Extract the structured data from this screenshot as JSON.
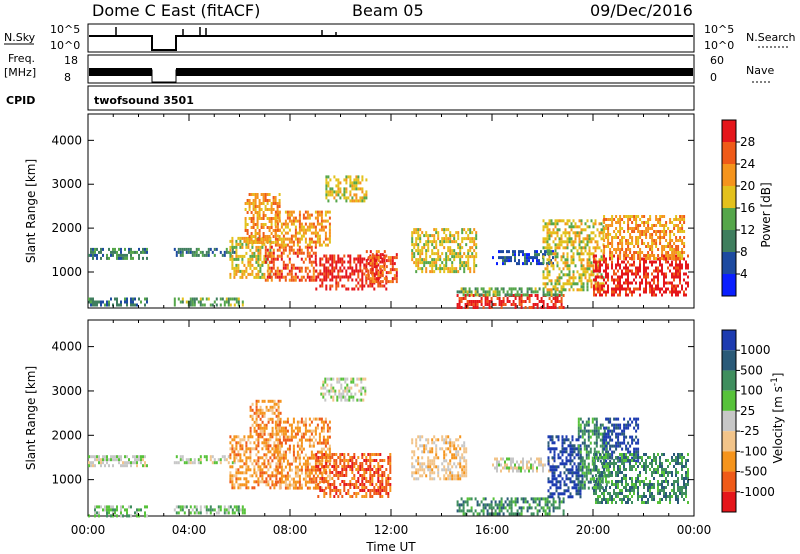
{
  "header": {
    "station": "Dome C East (fitACF)",
    "beam": "Beam 05",
    "date": "09/Dec/2016"
  },
  "status_panels": {
    "nsky_label": "N.Sky",
    "nsky_ticks": [
      "10^5",
      "10^0"
    ],
    "nsearch_label": "N.Search",
    "nsearch_ticks": [
      "10^5",
      "10^0"
    ],
    "freq_label": "Freq.",
    "freq_unit": "[MHz]",
    "freq_ticks": [
      "18",
      "8"
    ],
    "nave_label": "Nave",
    "nave_ticks": [
      "60",
      "0"
    ],
    "cpid_label": "CPID",
    "cpid_value": "twofsound 3501"
  },
  "x_axis": {
    "label": "Time UT",
    "ticks": [
      "00:00",
      "04:00",
      "08:00",
      "12:00",
      "16:00",
      "20:00",
      "00:00"
    ]
  },
  "colors": {
    "power": [
      "#0a1fff",
      "#1d4aa0",
      "#3f7e5e",
      "#55a64a",
      "#e3c11c",
      "#f5941c",
      "#ef5a18",
      "#e5161b"
    ],
    "velocity": [
      "#e5161b",
      "#ef5a18",
      "#f5941c",
      "#f2c48a",
      "#c7c7c7",
      "#57c23a",
      "#3f8e5e",
      "#2a5a78",
      "#1d3bb0"
    ],
    "axis": "#000000"
  },
  "chart_data": [
    {
      "type": "heatmap",
      "name": "power-panel",
      "xlabel": "",
      "ylabel": "Slant Range [km]",
      "xlim": [
        0,
        24
      ],
      "ylim": [
        180,
        4600
      ],
      "yticks": [
        1000,
        2000,
        3000,
        4000
      ],
      "colorbar": {
        "label": "Power [dB]",
        "ticks": [
          "28",
          "24",
          "20",
          "16",
          "12",
          "8",
          "4"
        ],
        "range": [
          0,
          32
        ]
      },
      "regions": [
        {
          "t": [
            0.0,
            2.3
          ],
          "r": [
            1300,
            1550
          ],
          "level": 2
        },
        {
          "t": [
            0.0,
            2.3
          ],
          "r": [
            220,
            420
          ],
          "level": 2
        },
        {
          "t": [
            3.4,
            5.8
          ],
          "r": [
            1350,
            1550
          ],
          "level": 2
        },
        {
          "t": [
            3.4,
            6.2
          ],
          "r": [
            220,
            420
          ],
          "level": 3
        },
        {
          "t": [
            5.6,
            7.2
          ],
          "r": [
            900,
            1800
          ],
          "level": 4
        },
        {
          "t": [
            6.2,
            7.6
          ],
          "r": [
            1700,
            2800
          ],
          "level": 5
        },
        {
          "t": [
            7.0,
            9.0
          ],
          "r": [
            800,
            1600
          ],
          "level": 6
        },
        {
          "t": [
            7.4,
            9.6
          ],
          "r": [
            1600,
            2400
          ],
          "level": 5
        },
        {
          "t": [
            9.0,
            11.8
          ],
          "r": [
            600,
            1400
          ],
          "level": 7
        },
        {
          "t": [
            9.4,
            11.0
          ],
          "r": [
            2600,
            3200
          ],
          "level": 4
        },
        {
          "t": [
            11.0,
            12.2
          ],
          "r": [
            800,
            1500
          ],
          "level": 6
        },
        {
          "t": [
            12.8,
            15.4
          ],
          "r": [
            1000,
            2000
          ],
          "level": 4
        },
        {
          "t": [
            14.6,
            18.8
          ],
          "r": [
            200,
            500
          ],
          "level": 7
        },
        {
          "t": [
            14.6,
            18.8
          ],
          "r": [
            450,
            650
          ],
          "level": 3
        },
        {
          "t": [
            16.0,
            18.4
          ],
          "r": [
            1200,
            1500
          ],
          "level": 1
        },
        {
          "t": [
            18.0,
            20.4
          ],
          "r": [
            600,
            2200
          ],
          "level": 4
        },
        {
          "t": [
            20.0,
            23.8
          ],
          "r": [
            500,
            1400
          ],
          "level": 7
        },
        {
          "t": [
            20.4,
            23.6
          ],
          "r": [
            1300,
            2300
          ],
          "level": 5
        }
      ]
    },
    {
      "type": "heatmap",
      "name": "velocity-panel",
      "xlabel": "Time UT",
      "ylabel": "Slant Range [km]",
      "xlim": [
        0,
        24
      ],
      "ylim": [
        180,
        4600
      ],
      "yticks": [
        1000,
        2000,
        3000,
        4000
      ],
      "colorbar": {
        "label": "Velocity [m s^-1]",
        "ticks": [
          "1000",
          "500",
          "100",
          "25",
          "-25",
          "-100",
          "-500",
          "-1000"
        ],
        "range": [
          -1000,
          1000
        ]
      },
      "regions": [
        {
          "t": [
            0.0,
            2.3
          ],
          "r": [
            1300,
            1550
          ],
          "level": 4
        },
        {
          "t": [
            0.0,
            2.3
          ],
          "r": [
            200,
            420
          ],
          "level": 5
        },
        {
          "t": [
            3.4,
            5.8
          ],
          "r": [
            1350,
            1550
          ],
          "level": 4
        },
        {
          "t": [
            3.4,
            6.2
          ],
          "r": [
            220,
            420
          ],
          "level": 5
        },
        {
          "t": [
            5.6,
            7.6
          ],
          "r": [
            800,
            2000
          ],
          "level": 2
        },
        {
          "t": [
            6.4,
            7.6
          ],
          "r": [
            2000,
            2800
          ],
          "level": 2
        },
        {
          "t": [
            7.4,
            9.6
          ],
          "r": [
            800,
            2400
          ],
          "level": 2
        },
        {
          "t": [
            9.0,
            12.0
          ],
          "r": [
            600,
            1600
          ],
          "level": 1
        },
        {
          "t": [
            9.2,
            11.0
          ],
          "r": [
            2800,
            3300
          ],
          "level": 4
        },
        {
          "t": [
            12.8,
            15.0
          ],
          "r": [
            1000,
            2000
          ],
          "level": 3
        },
        {
          "t": [
            14.6,
            18.8
          ],
          "r": [
            200,
            600
          ],
          "level": 6
        },
        {
          "t": [
            16.0,
            18.4
          ],
          "r": [
            1200,
            1500
          ],
          "level": 4
        },
        {
          "t": [
            18.2,
            19.6
          ],
          "r": [
            600,
            2000
          ],
          "level": 8
        },
        {
          "t": [
            19.4,
            20.6
          ],
          "r": [
            800,
            2400
          ],
          "level": 6
        },
        {
          "t": [
            20.4,
            21.8
          ],
          "r": [
            1400,
            2400
          ],
          "level": 8
        },
        {
          "t": [
            20.0,
            23.8
          ],
          "r": [
            500,
            1600
          ],
          "level": 6
        }
      ]
    }
  ]
}
